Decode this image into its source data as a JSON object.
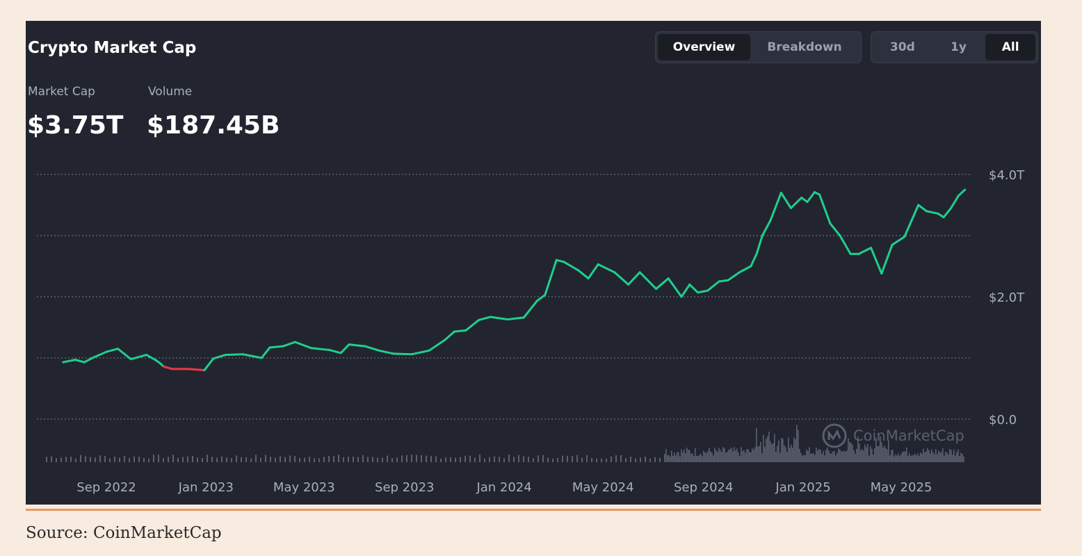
{
  "header": {
    "title": "Crypto Market Cap",
    "view_tabs": [
      "Overview",
      "Breakdown"
    ],
    "range_tabs": [
      "30d",
      "1y",
      "All"
    ]
  },
  "metrics": {
    "market_cap_label": "Market Cap",
    "market_cap_value": "$3.75T",
    "volume_label": "Volume",
    "volume_value": "$187.45B"
  },
  "watermark": "CoinMarketCap",
  "source": "Source: CoinMarketCap",
  "colors": {
    "up": "#1fcf8d",
    "down": "#ea3943",
    "panel": "#222530",
    "volume": "#5c6070"
  },
  "chart_data": {
    "type": "line",
    "title": "Crypto Market Cap",
    "xlabel": "",
    "ylabel": "",
    "x_ticks": [
      "Sep 2022",
      "Jan 2023",
      "May 2023",
      "Sep 2023",
      "Jan 2024",
      "May 2024",
      "Sep 2024",
      "Jan 2025",
      "May 2025"
    ],
    "y_ticks": [
      "$0.0",
      "$2.0T",
      "$4.0T"
    ],
    "y_tick_values": [
      0,
      2,
      4
    ],
    "ylim": [
      0,
      4
    ],
    "y_unit": "trillion USD",
    "grid": true,
    "color_rule": "red below starting value, green above",
    "x": [
      "2022-07-10",
      "2022-07-25",
      "2022-08-05",
      "2022-08-15",
      "2022-09-01",
      "2022-09-15",
      "2022-10-01",
      "2022-10-20",
      "2022-11-01",
      "2022-11-05",
      "2022-11-10",
      "2022-11-20",
      "2022-12-10",
      "2022-12-30",
      "2023-01-10",
      "2023-01-25",
      "2023-02-15",
      "2023-03-10",
      "2023-03-20",
      "2023-04-05",
      "2023-04-20",
      "2023-05-10",
      "2023-06-01",
      "2023-06-15",
      "2023-06-25",
      "2023-07-15",
      "2023-08-01",
      "2023-08-18",
      "2023-09-10",
      "2023-10-01",
      "2023-10-20",
      "2023-11-01",
      "2023-11-15",
      "2023-12-01",
      "2023-12-15",
      "2024-01-05",
      "2024-01-25",
      "2024-02-10",
      "2024-02-20",
      "2024-03-05",
      "2024-03-14",
      "2024-04-01",
      "2024-04-13",
      "2024-04-25",
      "2024-05-15",
      "2024-06-01",
      "2024-06-15",
      "2024-07-05",
      "2024-07-20",
      "2024-08-05",
      "2024-08-15",
      "2024-08-25",
      "2024-09-06",
      "2024-09-20",
      "2024-10-01",
      "2024-10-15",
      "2024-10-29",
      "2024-11-05",
      "2024-11-12",
      "2024-11-22",
      "2024-12-05",
      "2024-12-17",
      "2024-12-30",
      "2025-01-06",
      "2025-01-15",
      "2025-01-21",
      "2025-02-03",
      "2025-02-15",
      "2025-02-28",
      "2025-03-10",
      "2025-03-25",
      "2025-04-07",
      "2025-04-20",
      "2025-05-05",
      "2025-05-22",
      "2025-06-01",
      "2025-06-15",
      "2025-06-22",
      "2025-07-01",
      "2025-07-10",
      "2025-07-18"
    ],
    "values": [
      0.93,
      0.97,
      0.93,
      1.0,
      1.1,
      1.15,
      0.98,
      1.05,
      0.96,
      0.92,
      0.86,
      0.82,
      0.82,
      0.8,
      0.99,
      1.05,
      1.06,
      1.0,
      1.17,
      1.19,
      1.26,
      1.16,
      1.13,
      1.08,
      1.22,
      1.19,
      1.12,
      1.07,
      1.06,
      1.12,
      1.29,
      1.43,
      1.45,
      1.62,
      1.67,
      1.63,
      1.66,
      1.93,
      2.03,
      2.6,
      2.57,
      2.43,
      2.3,
      2.53,
      2.4,
      2.2,
      2.4,
      2.13,
      2.3,
      2.0,
      2.2,
      2.07,
      2.1,
      2.25,
      2.27,
      2.4,
      2.5,
      2.7,
      3.0,
      3.25,
      3.7,
      3.45,
      3.62,
      3.55,
      3.71,
      3.67,
      3.2,
      3.0,
      2.7,
      2.7,
      2.8,
      2.38,
      2.85,
      2.98,
      3.5,
      3.4,
      3.36,
      3.3,
      3.45,
      3.65,
      3.75
    ],
    "volume_note": "volume bars shown without axis"
  }
}
